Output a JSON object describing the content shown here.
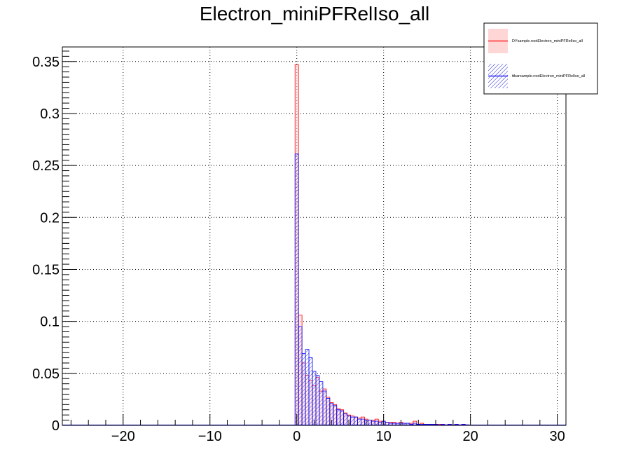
{
  "chart_data": {
    "type": "bar",
    "title": "Electron_miniPFRelIso_all",
    "xlabel": "",
    "ylabel": "",
    "xlim": [
      -27,
      31
    ],
    "ylim": [
      0,
      0.364
    ],
    "x_ticks": [
      {
        "value": -20,
        "label": "−20"
      },
      {
        "value": -10,
        "label": "−10"
      },
      {
        "value": 0,
        "label": "0"
      },
      {
        "value": 10,
        "label": "10"
      },
      {
        "value": 20,
        "label": "20"
      },
      {
        "value": 30,
        "label": "30"
      }
    ],
    "y_ticks": [
      {
        "value": 0,
        "label": "0"
      },
      {
        "value": 0.05,
        "label": "0.05"
      },
      {
        "value": 0.1,
        "label": "0.1"
      },
      {
        "value": 0.15,
        "label": "0.15"
      },
      {
        "value": 0.2,
        "label": "0.2"
      },
      {
        "value": 0.25,
        "label": "0.25"
      },
      {
        "value": 0.3,
        "label": "0.3"
      },
      {
        "value": 0.35,
        "label": "0.35"
      }
    ],
    "grid": true,
    "legend_position": "top-right",
    "bin_edges_start": -0.2,
    "bin_width": 0.4,
    "series": [
      {
        "name": "DYsample.rootElectron_miniPFRelIso_all",
        "color": "#ff0000",
        "fill": "#ffd6d6",
        "values": [
          0.347,
          0.106,
          0.06,
          0.048,
          0.043,
          0.038,
          0.046,
          0.033,
          0.035,
          0.027,
          0.022,
          0.02,
          0.016,
          0.015,
          0.012,
          0.01,
          0.009,
          0.008,
          0.007,
          0.008,
          0.006,
          0.005,
          0.005,
          0.006,
          0.004,
          0.004,
          0.003,
          0.003,
          0.003,
          0.002,
          0.003,
          0.002,
          0.002,
          0.002,
          0.004,
          0.001,
          0.002,
          0.001,
          0.001,
          0.001,
          0.001,
          0.001,
          0.001,
          0.0005,
          0.001,
          0.0005,
          0.001,
          0.0005,
          0.001,
          0.0005
        ]
      },
      {
        "name": "ttbarsample.rootElectron_miniPFRelIso_all",
        "color": "#0000ff",
        "fill": "#2222cc",
        "values": [
          0.261,
          0.095,
          0.069,
          0.073,
          0.065,
          0.052,
          0.048,
          0.042,
          0.033,
          0.026,
          0.021,
          0.019,
          0.015,
          0.014,
          0.011,
          0.009,
          0.008,
          0.008,
          0.006,
          0.006,
          0.005,
          0.005,
          0.004,
          0.004,
          0.003,
          0.004,
          0.003,
          0.002,
          0.002,
          0.002,
          0.002,
          0.002,
          0.002,
          0.001,
          0.002,
          0.001,
          0.001,
          0.001,
          0.001,
          0.001,
          0.001,
          0.0005,
          0.001,
          0.0005,
          0.001,
          0.0005,
          0.001,
          0.0005,
          0.001,
          0.0005
        ]
      }
    ]
  },
  "legend": {
    "entries": [
      {
        "label": "DYsample.rootElectron_miniPFRelIso_all"
      },
      {
        "label": "ttbarsample.rootElectron_miniPFRelIso_all"
      }
    ]
  }
}
